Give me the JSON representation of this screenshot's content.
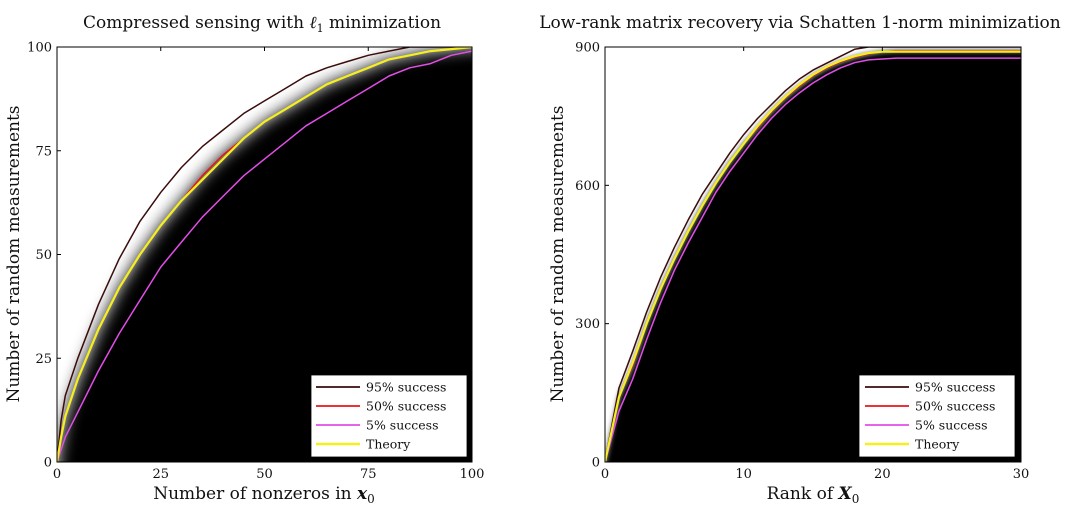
{
  "chart_data": [
    {
      "type": "heatmap",
      "title": "Compressed sensing with ℓ1 minimization",
      "title_main": "Compressed sensing with ",
      "title_symbol": "ℓ",
      "title_sub": "1",
      "title_tail": " minimization",
      "xlabel": "Number of nonzeros in x0",
      "xlabel_main": "Number of nonzeros in ",
      "xlabel_symbol": "x",
      "xlabel_sub": "0",
      "ylabel": "Number of random measurements",
      "xlim": [
        0,
        100
      ],
      "ylim": [
        0,
        100
      ],
      "xticks": [
        0,
        25,
        50,
        75,
        100
      ],
      "yticks": [
        0,
        25,
        50,
        75,
        100
      ],
      "legend_position": "bottom-right",
      "series": [
        {
          "name": "95% success",
          "color": "#3a0c0c",
          "x": [
            0,
            1,
            2,
            5,
            10,
            15,
            20,
            25,
            30,
            35,
            40,
            45,
            50,
            55,
            60,
            65,
            70,
            75,
            80,
            85,
            90,
            95,
            100
          ],
          "y": [
            0,
            10,
            16,
            25,
            38,
            49,
            58,
            65,
            71,
            76,
            80,
            84,
            87,
            90,
            93,
            95,
            96.5,
            98,
            99,
            100,
            100,
            100,
            100
          ]
        },
        {
          "name": "50% success",
          "color": "#e8141a",
          "x": [
            0,
            1,
            2,
            5,
            10,
            15,
            20,
            25,
            30,
            35,
            40,
            45,
            50,
            55,
            60,
            65,
            70,
            75,
            80,
            85,
            90,
            95,
            100
          ],
          "y": [
            0,
            6,
            11,
            20,
            32,
            42,
            50,
            57,
            63,
            69,
            74,
            78,
            82,
            85,
            88,
            91,
            93,
            95,
            97,
            98,
            99,
            99.5,
            100
          ]
        },
        {
          "name": "5% success",
          "color": "#e24ee8",
          "x": [
            0,
            1,
            2,
            5,
            10,
            15,
            20,
            25,
            30,
            35,
            40,
            45,
            50,
            55,
            60,
            65,
            70,
            75,
            80,
            85,
            90,
            95,
            100
          ],
          "y": [
            0,
            3,
            6,
            12,
            22,
            31,
            39,
            47,
            53,
            59,
            64,
            69,
            73,
            77,
            81,
            84,
            87,
            90,
            93,
            95,
            96,
            98,
            99
          ]
        },
        {
          "name": "Theory",
          "color": "#f6ef1e",
          "x": [
            0,
            1,
            2,
            5,
            10,
            15,
            20,
            25,
            30,
            35,
            40,
            45,
            50,
            55,
            60,
            65,
            70,
            75,
            80,
            85,
            90,
            95,
            100
          ],
          "y": [
            0,
            6,
            11,
            20,
            32,
            42,
            50,
            57,
            63,
            68,
            73,
            78,
            82,
            85,
            88,
            91,
            93,
            95,
            97,
            98,
            99,
            99.5,
            100
          ]
        }
      ]
    },
    {
      "type": "heatmap",
      "title": "Low-rank matrix recovery via Schatten 1-norm minimization",
      "xlabel": "Rank of X0",
      "xlabel_main": "Rank of ",
      "xlabel_symbol": "X",
      "xlabel_sub": "0",
      "ylabel": "Number of random measurements",
      "xlim": [
        0,
        30
      ],
      "ylim": [
        0,
        900
      ],
      "xticks": [
        0,
        10,
        20,
        30
      ],
      "yticks": [
        0,
        300,
        600,
        900
      ],
      "legend_position": "bottom-right",
      "series": [
        {
          "name": "95% success",
          "color": "#3a0c0c",
          "x": [
            0,
            1,
            2,
            3,
            4,
            5,
            6,
            7,
            8,
            9,
            10,
            11,
            12,
            13,
            14,
            15,
            16,
            17,
            18,
            19,
            20,
            21,
            22,
            24,
            26,
            28,
            30
          ],
          "y": [
            0,
            160,
            240,
            325,
            400,
            465,
            525,
            580,
            625,
            670,
            710,
            745,
            775,
            805,
            830,
            850,
            865,
            880,
            895,
            900,
            900,
            900,
            900,
            900,
            900,
            900,
            900
          ]
        },
        {
          "name": "50% success",
          "color": "#e8141a",
          "x": [
            0,
            1,
            2,
            3,
            4,
            5,
            6,
            7,
            8,
            9,
            10,
            11,
            12,
            13,
            14,
            15,
            16,
            17,
            18,
            19,
            20,
            21,
            22,
            24,
            26,
            28,
            30
          ],
          "y": [
            0,
            140,
            210,
            300,
            375,
            440,
            500,
            555,
            605,
            650,
            690,
            725,
            760,
            790,
            815,
            838,
            855,
            868,
            878,
            885,
            890,
            892,
            892,
            892,
            892,
            892,
            892
          ]
        },
        {
          "name": "5% success",
          "color": "#e24ee8",
          "x": [
            0,
            1,
            2,
            3,
            4,
            5,
            6,
            7,
            8,
            9,
            10,
            11,
            12,
            13,
            14,
            15,
            16,
            17,
            18,
            19,
            20,
            21,
            22,
            24,
            26,
            28,
            30
          ],
          "y": [
            0,
            110,
            180,
            265,
            345,
            415,
            475,
            530,
            585,
            630,
            670,
            710,
            745,
            775,
            800,
            822,
            840,
            855,
            866,
            872,
            874,
            876,
            876,
            876,
            876,
            876,
            876
          ]
        },
        {
          "name": "Theory",
          "color": "#f6ef1e",
          "x": [
            0,
            1,
            2,
            3,
            4,
            5,
            6,
            7,
            8,
            9,
            10,
            11,
            12,
            13,
            14,
            15,
            16,
            17,
            18,
            19,
            20,
            21,
            22,
            24,
            26,
            28,
            30
          ],
          "y": [
            0,
            140,
            215,
            300,
            375,
            440,
            500,
            555,
            605,
            650,
            690,
            728,
            762,
            792,
            818,
            840,
            857,
            870,
            880,
            887,
            890,
            890,
            890,
            890,
            890,
            890,
            890
          ]
        }
      ]
    }
  ]
}
